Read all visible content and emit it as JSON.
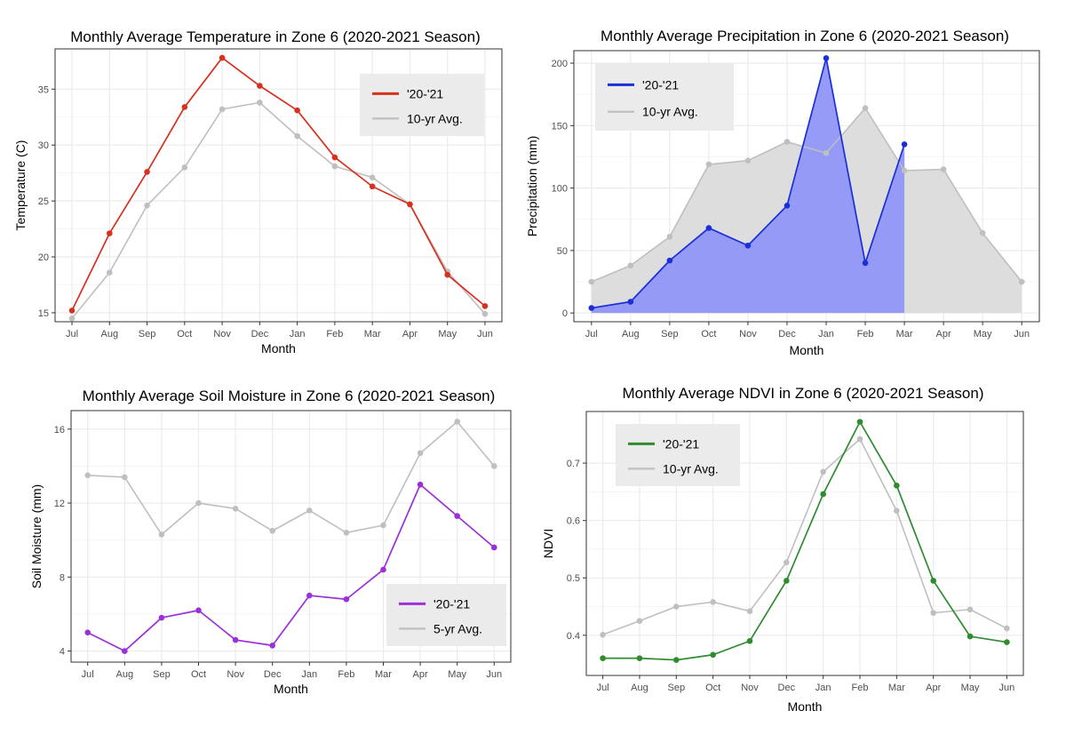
{
  "months": [
    "Jul",
    "Aug",
    "Sep",
    "Oct",
    "Nov",
    "Dec",
    "Jan",
    "Feb",
    "Mar",
    "Apr",
    "May",
    "Jun"
  ],
  "colors": {
    "grid": "#ebebeb",
    "legend_bg": "#ebebeb",
    "avg": "#bfbfbf",
    "avg_fill": "#dddddd"
  },
  "chart_data": [
    {
      "type": "line",
      "title": "Monthly Average Temperature in Zone 6 (2020-2021 Season)",
      "xlabel": "Month",
      "ylabel": "Temperature (C)",
      "ylim": [
        14.2,
        38.6
      ],
      "yticks": [
        15,
        20,
        25,
        30,
        35
      ],
      "yticklabels": [
        "15",
        "20",
        "25",
        "30",
        "35"
      ],
      "legend_position": "top-right",
      "series": [
        {
          "name": "'20-'21",
          "color": "#d7301f",
          "values": [
            15.2,
            22.1,
            27.6,
            33.4,
            37.8,
            35.3,
            33.1,
            28.9,
            26.3,
            24.7,
            18.4,
            15.6
          ]
        },
        {
          "name": "10-yr Avg.",
          "color": "#bfbfbf",
          "values": [
            14.5,
            18.6,
            24.6,
            28.0,
            33.2,
            33.8,
            30.8,
            28.1,
            27.1,
            24.7,
            18.7,
            14.9
          ]
        }
      ]
    },
    {
      "type": "area",
      "title": "Monthly Average Precipitation in Zone 6 (2020-2021 Season)",
      "xlabel": "Month",
      "ylabel": "Precipitation (mm)",
      "ylim": [
        -7,
        210
      ],
      "yticks": [
        0,
        50,
        100,
        150,
        200
      ],
      "yticklabels": [
        "0",
        "50",
        "100",
        "150",
        "200"
      ],
      "legend_position": "top-left",
      "series": [
        {
          "name": "'20-'21",
          "color": "#1a2fd6",
          "fill": "#8f96f5",
          "values": [
            4,
            9,
            42,
            68,
            54,
            86,
            204,
            40,
            135,
            null,
            null,
            null
          ]
        },
        {
          "name": "10-yr Avg.",
          "color": "#bfbfbf",
          "fill": "#dddddd",
          "values": [
            25,
            38,
            61,
            119,
            122,
            137,
            128,
            164,
            114,
            115,
            64,
            25
          ]
        }
      ]
    },
    {
      "type": "line",
      "title": "Monthly Average Soil Moisture in Zone 6 (2020-2021 Season)",
      "xlabel": "Month",
      "ylabel": "Soil Moisture (mm)",
      "ylim": [
        3.4,
        17.0
      ],
      "yticks": [
        4,
        8,
        12,
        16
      ],
      "yticklabels": [
        "4",
        "8",
        "12",
        "16"
      ],
      "legend_position": "bottom-right",
      "series": [
        {
          "name": "'20-'21",
          "color": "#9b30d9",
          "values": [
            5.0,
            4.0,
            5.8,
            6.2,
            4.6,
            4.3,
            7.0,
            6.8,
            8.4,
            13.0,
            11.3,
            9.6
          ]
        },
        {
          "name": "5-yr Avg.",
          "color": "#bfbfbf",
          "values": [
            13.5,
            13.4,
            10.3,
            12.0,
            11.7,
            10.5,
            11.6,
            10.4,
            10.8,
            14.7,
            16.4,
            14.0
          ]
        }
      ]
    },
    {
      "type": "line",
      "title": "Monthly Average NDVI in Zone 6 (2020-2021 Season)",
      "xlabel": "Month",
      "ylabel": "NDVI",
      "ylim": [
        0.33,
        0.79
      ],
      "yticks": [
        0.4,
        0.5,
        0.6,
        0.7
      ],
      "yticklabels": [
        "0.4",
        "0.5",
        "0.6",
        "0.7"
      ],
      "legend_position": "top-left",
      "series": [
        {
          "name": "'20-'21",
          "color": "#2e8b2e",
          "values": [
            0.36,
            0.36,
            0.357,
            0.366,
            0.39,
            0.495,
            0.646,
            0.772,
            0.661,
            0.495,
            0.398,
            0.388
          ]
        },
        {
          "name": "10-yr Avg.",
          "color": "#bfbfbf",
          "values": [
            0.401,
            0.425,
            0.45,
            0.458,
            0.442,
            0.527,
            0.685,
            0.742,
            0.617,
            0.439,
            0.445,
            0.412
          ]
        }
      ]
    }
  ]
}
